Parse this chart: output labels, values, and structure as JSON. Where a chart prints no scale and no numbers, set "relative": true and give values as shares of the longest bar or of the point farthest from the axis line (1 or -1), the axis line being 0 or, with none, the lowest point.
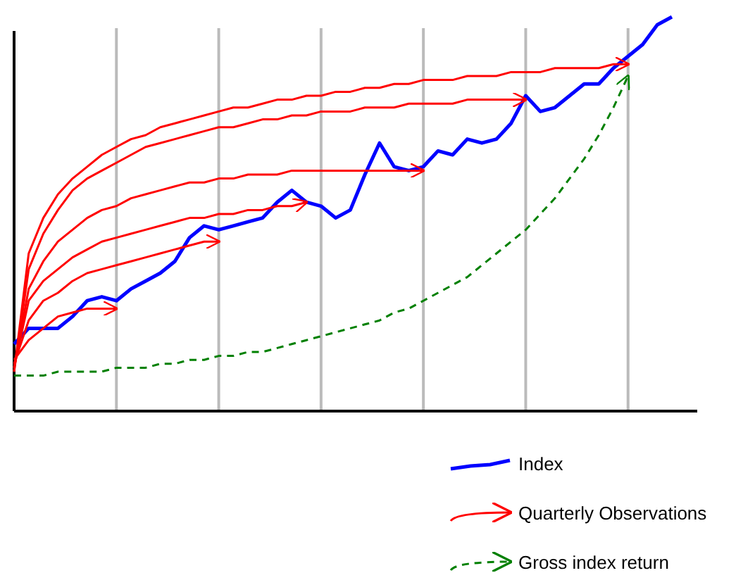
{
  "chart_data": {
    "type": "line",
    "relative": true,
    "grid": "x",
    "legend": "bottom right",
    "categories": [
      null,
      null,
      null,
      null,
      null,
      null,
      null,
      null,
      null,
      null,
      null,
      null,
      null,
      null,
      null,
      null,
      null,
      null,
      null,
      null,
      null,
      null,
      null,
      null,
      null,
      null,
      null,
      null,
      null,
      null,
      null,
      null,
      null,
      null,
      null,
      null,
      null,
      null,
      null,
      null,
      null,
      null,
      null,
      null,
      null,
      null
    ],
    "series": [
      {
        "name": "Index",
        "color": "#0000ff",
        "line_style": "solid",
        "values": [
          0.17,
          0.21,
          0.21,
          0.21,
          0.24,
          0.28,
          0.29,
          0.28,
          0.31,
          0.33,
          0.35,
          0.38,
          0.44,
          0.47,
          0.46,
          0.47,
          0.48,
          0.49,
          0.53,
          0.56,
          0.53,
          0.52,
          0.49,
          0.51,
          0.6,
          0.68,
          0.62,
          0.61,
          0.62,
          0.66,
          0.65,
          0.69,
          0.68,
          0.69,
          0.73,
          0.8,
          0.76,
          0.77,
          0.8,
          0.83,
          0.83,
          0.87,
          0.9,
          0.93,
          0.98,
          1
        ]
      },
      {
        "name": "Quarterly Observations",
        "color": "#ff0000",
        "line_style": "solid",
        "values": [
          0.13,
          0.18,
          0.21,
          0.24,
          0.25,
          0.26,
          0.26,
          0.26,
          null,
          null,
          null,
          null,
          null,
          null,
          null,
          null,
          null,
          null,
          null,
          null,
          null,
          null,
          null,
          null,
          null,
          null,
          null,
          null,
          null,
          null,
          null,
          null,
          null,
          null,
          null,
          null,
          null,
          null,
          null,
          null,
          null,
          null,
          null,
          null,
          null,
          null
        ]
      },
      {
        "color": "#ff0000",
        "line_style": "solid",
        "values": [
          0.12,
          0.23,
          0.28,
          0.3,
          0.33,
          0.35,
          0.36,
          0.37,
          0.38,
          0.39,
          0.4,
          0.41,
          0.42,
          0.43,
          0.43,
          null,
          null,
          null,
          null,
          null,
          null,
          null,
          null,
          null,
          null,
          null,
          null,
          null,
          null,
          null,
          null,
          null,
          null,
          null,
          null,
          null,
          null,
          null,
          null,
          null,
          null,
          null,
          null,
          null,
          null,
          null
        ]
      },
      {
        "color": "#ff0000",
        "line_style": "solid",
        "values": [
          0.11,
          0.28,
          0.33,
          0.36,
          0.39,
          0.41,
          0.43,
          0.44,
          0.45,
          0.46,
          0.47,
          0.48,
          0.49,
          0.49,
          0.5,
          0.5,
          0.51,
          0.51,
          0.52,
          0.52,
          0.53,
          null,
          null,
          null,
          null,
          null,
          null,
          null,
          null,
          null,
          null,
          null,
          null,
          null,
          null,
          null,
          null,
          null,
          null,
          null,
          null,
          null,
          null,
          null,
          null,
          null
        ]
      },
      {
        "color": "#ff0000",
        "line_style": "solid",
        "values": [
          0.11,
          0.31,
          0.38,
          0.43,
          0.46,
          0.49,
          0.51,
          0.52,
          0.54,
          0.55,
          0.56,
          0.57,
          0.58,
          0.58,
          0.59,
          0.59,
          0.6,
          0.6,
          0.6,
          0.61,
          0.61,
          0.61,
          0.61,
          0.61,
          0.61,
          0.61,
          0.61,
          0.61,
          0.61,
          null,
          null,
          null,
          null,
          null,
          null,
          null,
          null,
          null,
          null,
          null,
          null,
          null,
          null,
          null,
          null,
          null
        ]
      },
      {
        "color": "#ff0000",
        "line_style": "solid",
        "values": [
          0.1,
          0.36,
          0.45,
          0.51,
          0.56,
          0.59,
          0.61,
          0.63,
          0.65,
          0.67,
          0.68,
          0.69,
          0.7,
          0.71,
          0.72,
          0.72,
          0.73,
          0.74,
          0.74,
          0.75,
          0.75,
          0.76,
          0.76,
          0.76,
          0.77,
          0.77,
          0.77,
          0.78,
          0.78,
          0.78,
          0.78,
          0.79,
          0.79,
          0.79,
          0.79,
          0.79,
          null,
          null,
          null,
          null,
          null,
          null,
          null,
          null,
          null,
          null
        ]
      },
      {
        "color": "#ff0000",
        "line_style": "solid",
        "values": [
          0.1,
          0.4,
          0.49,
          0.55,
          0.59,
          0.62,
          0.65,
          0.67,
          0.69,
          0.7,
          0.72,
          0.73,
          0.74,
          0.75,
          0.76,
          0.77,
          0.77,
          0.78,
          0.79,
          0.79,
          0.8,
          0.8,
          0.81,
          0.81,
          0.82,
          0.82,
          0.83,
          0.83,
          0.84,
          0.84,
          0.84,
          0.85,
          0.85,
          0.85,
          0.86,
          0.86,
          0.86,
          0.87,
          0.87,
          0.87,
          0.87,
          0.88,
          0.88,
          null,
          null,
          null
        ]
      },
      {
        "name": "Gross index return",
        "color": "#008000",
        "line_style": "dashed",
        "values": [
          0.09,
          0.09,
          0.09,
          0.1,
          0.1,
          0.1,
          0.1,
          0.11,
          0.11,
          0.11,
          0.12,
          0.12,
          0.13,
          0.13,
          0.14,
          0.14,
          0.15,
          0.15,
          0.16,
          0.17,
          0.18,
          0.19,
          0.2,
          0.21,
          0.22,
          0.23,
          0.25,
          0.26,
          0.28,
          0.3,
          0.32,
          0.34,
          0.37,
          0.4,
          0.43,
          0.46,
          0.5,
          0.54,
          0.59,
          0.64,
          0.7,
          0.77,
          0.85,
          null,
          null,
          null
        ]
      }
    ]
  }
}
